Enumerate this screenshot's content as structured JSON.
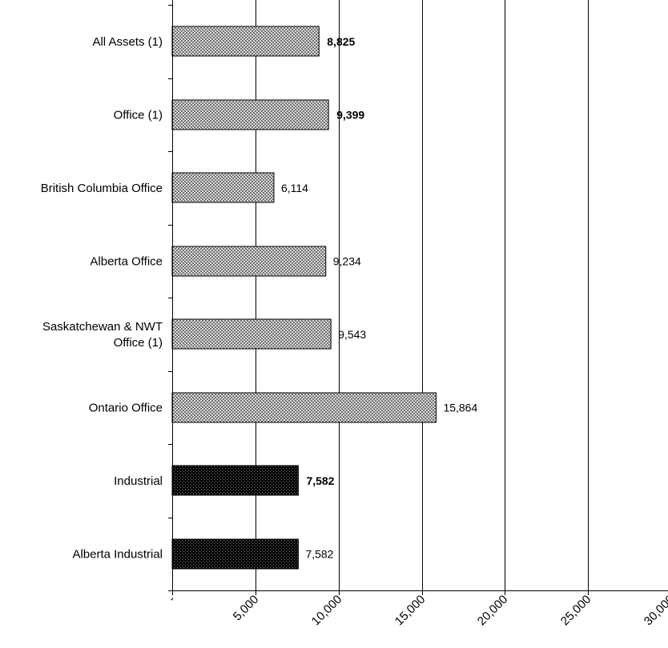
{
  "chart_data": {
    "type": "bar",
    "orientation": "horizontal",
    "title": "",
    "xlabel": "",
    "ylabel": "",
    "xlim": [
      0,
      30000
    ],
    "x_ticks": [
      0,
      5000,
      10000,
      15000,
      20000,
      25000,
      30000
    ],
    "x_tick_labels": [
      "-",
      "5,000",
      "10,000",
      "15,000",
      "20,000",
      "25,000",
      "30,000"
    ],
    "grid": "vertical gridlines",
    "legend": "none",
    "categories": [
      {
        "label": "All Assets (1)",
        "lines": [
          "All Assets (1)"
        ],
        "value": 8825,
        "value_label": "8,825",
        "bold": true,
        "fill": "light-pattern"
      },
      {
        "label": "Office (1)",
        "lines": [
          "Office (1)"
        ],
        "value": 9399,
        "value_label": "9,399",
        "bold": true,
        "fill": "light-pattern"
      },
      {
        "label": "British Columbia Office",
        "lines": [
          "British Columbia Office"
        ],
        "value": 6114,
        "value_label": "6,114",
        "bold": false,
        "fill": "light-pattern"
      },
      {
        "label": "Alberta Office",
        "lines": [
          "Alberta Office"
        ],
        "value": 9234,
        "value_label": "9,234",
        "bold": false,
        "fill": "light-pattern"
      },
      {
        "label": "Saskatchewan & NWT Office (1)",
        "lines": [
          "Saskatchewan & NWT",
          "Office (1)"
        ],
        "value": 9543,
        "value_label": "9,543",
        "bold": false,
        "fill": "light-pattern"
      },
      {
        "label": "Ontario Office",
        "lines": [
          "Ontario Office"
        ],
        "value": 15864,
        "value_label": "15,864",
        "bold": false,
        "fill": "light-pattern"
      },
      {
        "label": "Industrial",
        "lines": [
          "Industrial"
        ],
        "value": 7582,
        "value_label": "7,582",
        "bold": true,
        "fill": "dark-pattern"
      },
      {
        "label": "Alberta Industrial",
        "lines": [
          "Alberta Industrial"
        ],
        "value": 7582,
        "value_label": "7,582",
        "bold": false,
        "fill": "dark-pattern"
      }
    ],
    "colors": {
      "light_bar_fg": "#777777",
      "light_bar_bg": "#d4d4d4",
      "dark_bar_fg": "#000000",
      "dark_bar_bg": "#5a5a5a",
      "axis": "#000000",
      "grid": "#000000"
    }
  }
}
